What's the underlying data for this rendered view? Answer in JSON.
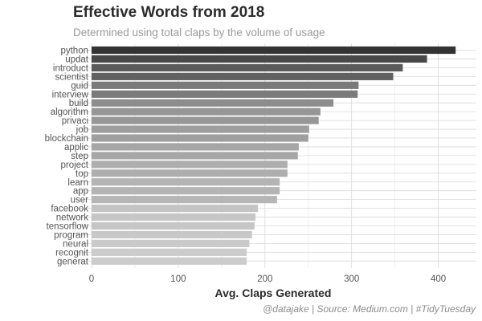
{
  "colors": {
    "grid_major": "#d9d9d9",
    "grid_minor": "#ececec",
    "tick_text": "#555555",
    "bar_darkest": "#333333",
    "bar_lightest": "#cccccc"
  },
  "chart_data": {
    "type": "bar",
    "orientation": "horizontal",
    "title": "Effective Words from 2018",
    "subtitle": "Determined using total claps by the volume of usage",
    "xlabel": "Avg. Claps Generated",
    "ylabel": "",
    "caption": "@datajake | Source: Medium.com | #TidyTuesday",
    "xlim": [
      0,
      440
    ],
    "xticks": [
      0,
      100,
      200,
      300,
      400
    ],
    "grid": true,
    "legend": "none",
    "fill": "grey gradient by value (darker = higher)",
    "categories": [
      "python",
      "updat",
      "introduct",
      "scientist",
      "guid",
      "interview",
      "build",
      "algorithm",
      "privaci",
      "job",
      "blockchain",
      "applic",
      "step",
      "project",
      "top",
      "learn",
      "app",
      "user",
      "facebook",
      "network",
      "tensorflow",
      "program",
      "neural",
      "recognit",
      "generat"
    ],
    "values": [
      420,
      387,
      359,
      348,
      308,
      307,
      279,
      264,
      262,
      251,
      250,
      239,
      238,
      226,
      226,
      217,
      217,
      214,
      192,
      189,
      188,
      185,
      182,
      179,
      179
    ]
  }
}
